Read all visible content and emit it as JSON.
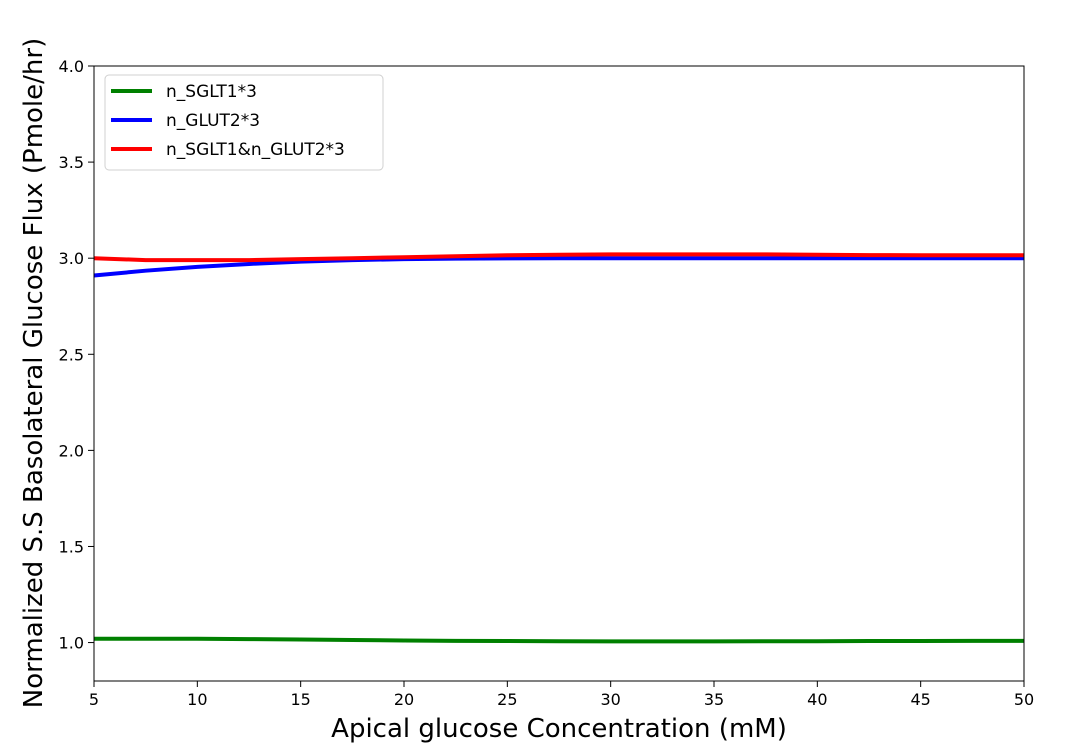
{
  "chart_data": {
    "type": "line",
    "title": "",
    "xlabel": "Apical glucose Concentration (mM)",
    "ylabel": "Normalized S.S Basolateral Glucose Flux (Pmole/hr)",
    "xlim": [
      5,
      50
    ],
    "ylim": [
      0.8,
      4.0
    ],
    "xticks": [
      "5",
      "10",
      "15",
      "20",
      "25",
      "30",
      "35",
      "40",
      "45",
      "50"
    ],
    "yticks": [
      "1.0",
      "1.5",
      "2.0",
      "2.5",
      "3.0",
      "3.5",
      "4.0"
    ],
    "grid": false,
    "legend_position": "top-left",
    "x": [
      5,
      7.5,
      10,
      12.5,
      15,
      17.5,
      20,
      22.5,
      25,
      27.5,
      30,
      32.5,
      35,
      37.5,
      40,
      42.5,
      45,
      47.5,
      50
    ],
    "series": [
      {
        "name": "n_SGLT1*3",
        "color": "#008000",
        "values": [
          1.02,
          1.02,
          1.02,
          1.018,
          1.016,
          1.013,
          1.011,
          1.009,
          1.008,
          1.007,
          1.006,
          1.006,
          1.006,
          1.007,
          1.007,
          1.008,
          1.008,
          1.009,
          1.009
        ]
      },
      {
        "name": "n_GLUT2*3",
        "color": "#0000ff",
        "values": [
          2.91,
          2.935,
          2.955,
          2.97,
          2.982,
          2.99,
          2.995,
          2.998,
          2.999,
          3.0,
          3.0,
          3.0,
          3.0,
          3.0,
          3.0,
          3.0,
          3.0,
          3.0,
          3.0
        ]
      },
      {
        "name": "n_SGLT1&n_GLUT2*3",
        "color": "#ff0000",
        "values": [
          3.0,
          2.99,
          2.99,
          2.99,
          2.995,
          3.0,
          3.005,
          3.01,
          3.015,
          3.018,
          3.02,
          3.02,
          3.02,
          3.02,
          3.018,
          3.016,
          3.015,
          3.015,
          3.015
        ]
      }
    ]
  }
}
